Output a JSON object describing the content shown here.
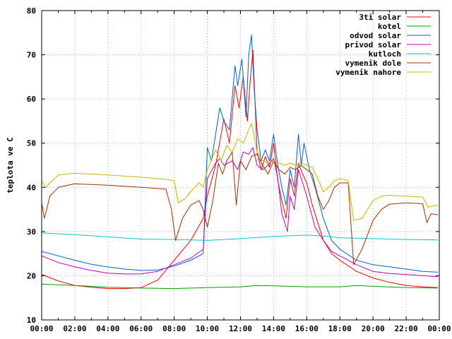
{
  "chart_data": {
    "type": "line",
    "title": "",
    "xlabel": "",
    "ylabel": "teplota ve C",
    "ylim": [
      10,
      80
    ],
    "xlim": [
      "00:00",
      "24:00"
    ],
    "grid": true,
    "legend_position": "top-right",
    "x_ticks": [
      "00:00",
      "02:00",
      "04:00",
      "06:00",
      "08:00",
      "10:00",
      "12:00",
      "14:00",
      "16:00",
      "18:00",
      "20:00",
      "22:00",
      "00:00"
    ],
    "y_ticks": [
      "10",
      "20",
      "30",
      "40",
      "50",
      "60",
      "70",
      "80"
    ],
    "series": [
      {
        "name": "3ti solar",
        "color": "#ff0000",
        "points": [
          [
            "00:00",
            20.3
          ],
          [
            "01:00",
            18.8
          ],
          [
            "02:00",
            17.8
          ],
          [
            "03:00",
            17.4
          ],
          [
            "04:00",
            17.1
          ],
          [
            "05:00",
            17.1
          ],
          [
            "06:00",
            17.3
          ],
          [
            "07:00",
            19.0
          ],
          [
            "08:00",
            23.5
          ],
          [
            "09:00",
            28.0
          ],
          [
            "09:45",
            33.0
          ],
          [
            "10:00",
            38.0
          ],
          [
            "10:30",
            45.0
          ],
          [
            "10:50",
            52.0
          ],
          [
            "11:00",
            55.5
          ],
          [
            "11:20",
            50.0
          ],
          [
            "11:40",
            63.0
          ],
          [
            "11:55",
            58.0
          ],
          [
            "12:10",
            65.0
          ],
          [
            "12:25",
            55.0
          ],
          [
            "12:35",
            64.0
          ],
          [
            "12:45",
            71.0
          ],
          [
            "13:00",
            48.0
          ],
          [
            "13:15",
            44.0
          ],
          [
            "13:30",
            47.0
          ],
          [
            "13:45",
            44.5
          ],
          [
            "14:00",
            50.0
          ],
          [
            "14:15",
            41.5
          ],
          [
            "14:30",
            37.0
          ],
          [
            "14:45",
            33.0
          ],
          [
            "15:00",
            42.0
          ],
          [
            "15:15",
            38.0
          ],
          [
            "15:30",
            45.5
          ],
          [
            "15:45",
            43.0
          ],
          [
            "16:00",
            41.0
          ],
          [
            "16:20",
            36.0
          ],
          [
            "16:40",
            32.0
          ],
          [
            "17:00",
            28.0
          ],
          [
            "17:30",
            25.0
          ],
          [
            "18:00",
            23.5
          ],
          [
            "19:00",
            21.0
          ],
          [
            "20:00",
            19.5
          ],
          [
            "21:00",
            18.5
          ],
          [
            "22:00",
            17.8
          ],
          [
            "23:00",
            17.5
          ],
          [
            "23:55",
            17.3
          ]
        ]
      },
      {
        "name": "kotel",
        "color": "#00a000",
        "points": [
          [
            "00:00",
            18.1
          ],
          [
            "02:00",
            17.8
          ],
          [
            "04:00",
            17.4
          ],
          [
            "06:00",
            17.2
          ],
          [
            "08:00",
            17.1
          ],
          [
            "10:00",
            17.3
          ],
          [
            "12:00",
            17.5
          ],
          [
            "13:00",
            17.8
          ],
          [
            "14:00",
            17.7
          ],
          [
            "16:00",
            17.5
          ],
          [
            "18:00",
            17.5
          ],
          [
            "19:00",
            17.8
          ],
          [
            "20:00",
            17.6
          ],
          [
            "22:00",
            17.3
          ],
          [
            "23:55",
            17.2
          ]
        ]
      },
      {
        "name": "odvod solar",
        "color": "#0060d0",
        "points": [
          [
            "00:00",
            25.5
          ],
          [
            "01:00",
            24.5
          ],
          [
            "02:00",
            23.5
          ],
          [
            "03:00",
            22.6
          ],
          [
            "04:00",
            22.0
          ],
          [
            "05:00",
            21.5
          ],
          [
            "06:00",
            21.2
          ],
          [
            "07:00",
            21.3
          ],
          [
            "08:00",
            22.2
          ],
          [
            "09:00",
            23.5
          ],
          [
            "09:45",
            25.0
          ],
          [
            "10:00",
            49.0
          ],
          [
            "10:15",
            46.0
          ],
          [
            "10:45",
            58.0
          ],
          [
            "11:00",
            55.0
          ],
          [
            "11:20",
            53.0
          ],
          [
            "11:40",
            67.5
          ],
          [
            "11:50",
            63.0
          ],
          [
            "12:05",
            69.0
          ],
          [
            "12:20",
            56.0
          ],
          [
            "12:30",
            70.0
          ],
          [
            "12:40",
            74.5
          ],
          [
            "12:50",
            62.0
          ],
          [
            "13:00",
            53.0
          ],
          [
            "13:15",
            46.0
          ],
          [
            "13:30",
            48.5
          ],
          [
            "13:45",
            46.0
          ],
          [
            "14:00",
            52.0
          ],
          [
            "14:15",
            45.0
          ],
          [
            "14:30",
            40.0
          ],
          [
            "14:45",
            36.0
          ],
          [
            "15:00",
            44.0
          ],
          [
            "15:15",
            40.0
          ],
          [
            "15:30",
            52.0
          ],
          [
            "15:40",
            45.0
          ],
          [
            "15:50",
            50.0
          ],
          [
            "16:10",
            44.0
          ],
          [
            "16:30",
            40.0
          ],
          [
            "17:00",
            33.0
          ],
          [
            "17:30",
            28.0
          ],
          [
            "18:00",
            26.0
          ],
          [
            "19:00",
            23.5
          ],
          [
            "20:00",
            22.5
          ],
          [
            "21:00",
            22.0
          ],
          [
            "22:00",
            21.5
          ],
          [
            "23:00",
            21.0
          ],
          [
            "23:55",
            20.8
          ]
        ]
      },
      {
        "name": "privod solar",
        "color": "#c000c0",
        "points": [
          [
            "00:00",
            24.5
          ],
          [
            "01:00",
            23.0
          ],
          [
            "02:00",
            22.0
          ],
          [
            "03:00",
            21.2
          ],
          [
            "04:00",
            20.6
          ],
          [
            "05:00",
            20.4
          ],
          [
            "06:00",
            20.4
          ],
          [
            "07:00",
            21.0
          ],
          [
            "08:00",
            22.5
          ],
          [
            "09:00",
            24.0
          ],
          [
            "09:45",
            26.0
          ],
          [
            "10:00",
            42.0
          ],
          [
            "10:30",
            45.5
          ],
          [
            "10:45",
            46.5
          ],
          [
            "11:00",
            45.0
          ],
          [
            "11:30",
            46.0
          ],
          [
            "11:50",
            44.0
          ],
          [
            "12:10",
            48.0
          ],
          [
            "12:30",
            47.5
          ],
          [
            "12:45",
            49.0
          ],
          [
            "13:00",
            45.0
          ],
          [
            "13:20",
            44.0
          ],
          [
            "13:40",
            45.0
          ],
          [
            "14:00",
            46.5
          ],
          [
            "14:15",
            42.0
          ],
          [
            "14:30",
            34.0
          ],
          [
            "14:50",
            30.0
          ],
          [
            "15:00",
            38.0
          ],
          [
            "15:15",
            35.0
          ],
          [
            "15:30",
            44.0
          ],
          [
            "15:45",
            41.0
          ],
          [
            "16:00",
            38.0
          ],
          [
            "16:30",
            31.0
          ],
          [
            "17:00",
            28.0
          ],
          [
            "17:30",
            25.5
          ],
          [
            "18:00",
            24.5
          ],
          [
            "19:00",
            22.5
          ],
          [
            "20:00",
            21.0
          ],
          [
            "21:00",
            20.5
          ],
          [
            "22:00",
            20.3
          ],
          [
            "23:00",
            20.0
          ],
          [
            "23:55",
            19.8
          ]
        ]
      },
      {
        "name": "kutloch",
        "color": "#00c8c8",
        "points": [
          [
            "00:00",
            29.7
          ],
          [
            "02:00",
            29.3
          ],
          [
            "04:00",
            28.8
          ],
          [
            "06:00",
            28.3
          ],
          [
            "08:00",
            28.2
          ],
          [
            "10:00",
            28.0
          ],
          [
            "12:00",
            28.4
          ],
          [
            "14:00",
            28.9
          ],
          [
            "16:00",
            29.2
          ],
          [
            "17:00",
            29.0
          ],
          [
            "18:00",
            28.6
          ],
          [
            "20:00",
            28.4
          ],
          [
            "22:00",
            28.2
          ],
          [
            "23:55",
            28.1
          ]
        ]
      },
      {
        "name": "vymenik dole",
        "color": "#a03000",
        "points": [
          [
            "00:00",
            36.5
          ],
          [
            "00:10",
            33.0
          ],
          [
            "00:30",
            38.0
          ],
          [
            "01:00",
            40.0
          ],
          [
            "02:00",
            40.8
          ],
          [
            "04:00",
            40.5
          ],
          [
            "06:00",
            40.0
          ],
          [
            "07:30",
            39.6
          ],
          [
            "07:50",
            35.0
          ],
          [
            "08:05",
            28.0
          ],
          [
            "08:30",
            33.0
          ],
          [
            "09:00",
            36.0
          ],
          [
            "09:30",
            37.0
          ],
          [
            "09:45",
            35.0
          ],
          [
            "10:00",
            31.0
          ],
          [
            "10:20",
            37.0
          ],
          [
            "10:40",
            45.5
          ],
          [
            "10:55",
            43.0
          ],
          [
            "11:10",
            46.0
          ],
          [
            "11:30",
            48.0
          ],
          [
            "11:45",
            36.0
          ],
          [
            "12:00",
            46.0
          ],
          [
            "12:20",
            44.0
          ],
          [
            "12:40",
            47.0
          ],
          [
            "13:00",
            47.5
          ],
          [
            "13:20",
            45.0
          ],
          [
            "13:40",
            43.0
          ],
          [
            "14:00",
            46.0
          ],
          [
            "14:20",
            44.0
          ],
          [
            "14:40",
            43.0
          ],
          [
            "15:00",
            44.5
          ],
          [
            "15:20",
            44.0
          ],
          [
            "15:40",
            45.0
          ],
          [
            "16:00",
            44.0
          ],
          [
            "16:20",
            43.0
          ],
          [
            "16:40",
            38.0
          ],
          [
            "17:00",
            35.0
          ],
          [
            "17:20",
            37.0
          ],
          [
            "17:40",
            40.0
          ],
          [
            "18:00",
            41.0
          ],
          [
            "18:30",
            41.0
          ],
          [
            "18:50",
            22.5
          ],
          [
            "19:20",
            26.0
          ],
          [
            "20:00",
            32.5
          ],
          [
            "20:30",
            35.0
          ],
          [
            "21:00",
            36.2
          ],
          [
            "22:00",
            36.5
          ],
          [
            "23:00",
            36.3
          ],
          [
            "23:15",
            32.0
          ],
          [
            "23:30",
            34.0
          ],
          [
            "23:55",
            33.8
          ]
        ]
      },
      {
        "name": "vymenik nahore",
        "color": "#c8b400",
        "points": [
          [
            "00:00",
            41.5
          ],
          [
            "00:15",
            40.0
          ],
          [
            "00:30",
            41.0
          ],
          [
            "01:00",
            42.8
          ],
          [
            "02:00",
            43.2
          ],
          [
            "04:00",
            42.8
          ],
          [
            "06:00",
            42.3
          ],
          [
            "07:30",
            41.8
          ],
          [
            "08:00",
            41.5
          ],
          [
            "08:15",
            36.5
          ],
          [
            "08:40",
            37.5
          ],
          [
            "09:00",
            39.0
          ],
          [
            "09:30",
            41.0
          ],
          [
            "09:45",
            40.0
          ],
          [
            "10:00",
            44.0
          ],
          [
            "10:30",
            48.5
          ],
          [
            "10:50",
            46.0
          ],
          [
            "11:10",
            49.5
          ],
          [
            "11:30",
            48.0
          ],
          [
            "11:50",
            51.0
          ],
          [
            "12:10",
            50.0
          ],
          [
            "12:30",
            53.0
          ],
          [
            "12:40",
            54.5
          ],
          [
            "13:00",
            48.0
          ],
          [
            "13:20",
            46.0
          ],
          [
            "13:40",
            45.5
          ],
          [
            "14:00",
            46.0
          ],
          [
            "14:20",
            45.5
          ],
          [
            "14:40",
            45.0
          ],
          [
            "15:00",
            45.5
          ],
          [
            "15:20",
            45.0
          ],
          [
            "15:40",
            45.5
          ],
          [
            "16:00",
            45.0
          ],
          [
            "16:20",
            44.5
          ],
          [
            "16:40",
            42.0
          ],
          [
            "17:00",
            39.0
          ],
          [
            "17:20",
            40.0
          ],
          [
            "17:40",
            41.5
          ],
          [
            "18:00",
            42.0
          ],
          [
            "18:30",
            41.5
          ],
          [
            "18:50",
            32.5
          ],
          [
            "19:20",
            33.0
          ],
          [
            "20:00",
            37.0
          ],
          [
            "20:30",
            38.0
          ],
          [
            "21:00",
            38.2
          ],
          [
            "22:00",
            38.0
          ],
          [
            "23:00",
            37.8
          ],
          [
            "23:20",
            35.5
          ],
          [
            "23:55",
            36.0
          ]
        ]
      }
    ]
  }
}
